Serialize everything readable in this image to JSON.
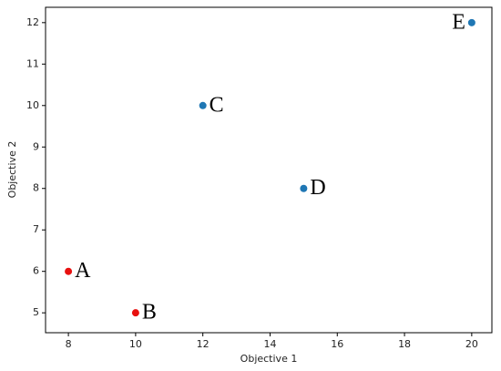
{
  "chart_data": {
    "type": "scatter",
    "x": [
      8,
      10,
      12,
      15,
      20
    ],
    "y": [
      6,
      5,
      10,
      8,
      12
    ],
    "point_labels": [
      "A",
      "B",
      "C",
      "D",
      "E"
    ],
    "colors": [
      "#e8100f",
      "#e8100f",
      "#1f77b4",
      "#1f77b4",
      "#1f77b4"
    ],
    "xlabel": "Objective 1",
    "ylabel": "Objective 2",
    "xlim": [
      7.32,
      20.6
    ],
    "ylim": [
      4.52,
      12.37
    ],
    "xticks": [
      8,
      10,
      12,
      14,
      16,
      18,
      20
    ],
    "yticks": [
      5,
      6,
      7,
      8,
      9,
      10,
      11,
      12
    ]
  }
}
